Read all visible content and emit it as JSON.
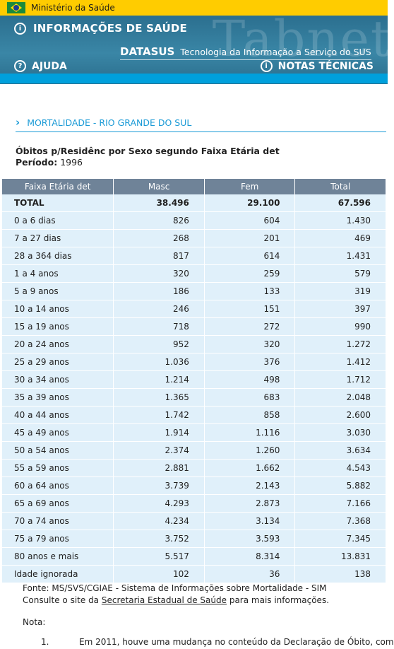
{
  "ministry": "Ministério da Saúde",
  "header": {
    "title": "INFORMAÇÕES DE SAÚDE",
    "watermark": "Tabnet",
    "brand": "DATASUS",
    "tagline": "Tecnologia da Informação a Serviço do SUS",
    "help": "AJUDA",
    "notes": "NOTAS TÉCNICAS"
  },
  "section_title": "MORTALIDADE - RIO GRANDE DO SUL",
  "report": {
    "title": "Óbitos p/Residênc por Sexo segundo Faixa Etária det",
    "period_label": "Período:",
    "period_value": "1996"
  },
  "table": {
    "headers": [
      "Faixa Etária det",
      "Masc",
      "Fem",
      "Total"
    ],
    "rows": [
      [
        "TOTAL",
        "38.496",
        "29.100",
        "67.596"
      ],
      [
        "0 a 6 dias",
        "826",
        "604",
        "1.430"
      ],
      [
        "7 a 27 dias",
        "268",
        "201",
        "469"
      ],
      [
        "28 a 364 dias",
        "817",
        "614",
        "1.431"
      ],
      [
        "1 a 4 anos",
        "320",
        "259",
        "579"
      ],
      [
        "5 a 9 anos",
        "186",
        "133",
        "319"
      ],
      [
        "10 a 14 anos",
        "246",
        "151",
        "397"
      ],
      [
        "15 a 19 anos",
        "718",
        "272",
        "990"
      ],
      [
        "20 a 24 anos",
        "952",
        "320",
        "1.272"
      ],
      [
        "25 a 29 anos",
        "1.036",
        "376",
        "1.412"
      ],
      [
        "30 a 34 anos",
        "1.214",
        "498",
        "1.712"
      ],
      [
        "35 a 39 anos",
        "1.365",
        "683",
        "2.048"
      ],
      [
        "40 a 44 anos",
        "1.742",
        "858",
        "2.600"
      ],
      [
        "45 a 49 anos",
        "1.914",
        "1.116",
        "3.030"
      ],
      [
        "50 a 54 anos",
        "2.374",
        "1.260",
        "3.634"
      ],
      [
        "55 a 59 anos",
        "2.881",
        "1.662",
        "4.543"
      ],
      [
        "60 a 64 anos",
        "3.739",
        "2.143",
        "5.882"
      ],
      [
        "65 a 69 anos",
        "4.293",
        "2.873",
        "7.166"
      ],
      [
        "70 a 74 anos",
        "4.234",
        "3.134",
        "7.368"
      ],
      [
        "75 a 79 anos",
        "3.752",
        "3.593",
        "7.345"
      ],
      [
        "80 anos e mais",
        "5.517",
        "8.314",
        "13.831"
      ],
      [
        "Idade ignorada",
        "102",
        "36",
        "138"
      ]
    ]
  },
  "footer": {
    "source": "Fonte: MS/SVS/CGIAE - Sistema de Informações sobre Mortalidade - SIM",
    "consult_pre": "Consulte o site da ",
    "consult_link": "Secretaria Estadual de Saúde",
    "consult_post": " para mais informações.",
    "nota_label": "Nota:",
    "note1_num": "1.",
    "note1_text": "Em 2011, houve uma mudança no conteúdo da Declaração de Óbito, com"
  },
  "colors": {
    "accent": "#1a9ad6",
    "header_bg": "#2b6f8f",
    "table_header_bg": "#6f8398",
    "table_cell_bg": "#e0f0fa",
    "top_bar": "#ffcc00"
  }
}
